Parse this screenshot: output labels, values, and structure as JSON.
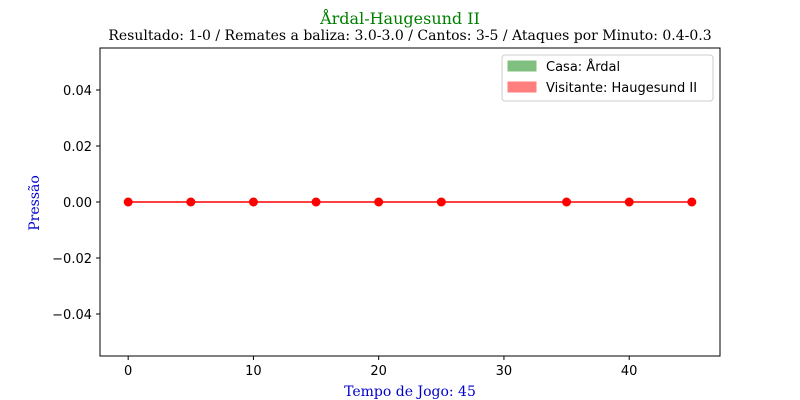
{
  "chart_data": {
    "type": "line",
    "title": "Årdal-Haugesund II",
    "subtitle": "Resultado: 1-0 / Remates a baliza: 3.0-3.0 / Cantos: 3-5 / Ataques por Minuto: 0.4-0.3",
    "xlabel": "Tempo de Jogo: 45",
    "ylabel": "Pressão",
    "xlim": [
      -2.25,
      47.25
    ],
    "ylim": [
      -0.055,
      0.055
    ],
    "xticks": [
      0,
      10,
      20,
      30,
      40
    ],
    "yticks": [
      -0.04,
      -0.02,
      0.0,
      0.02,
      0.04
    ],
    "ytick_labels": [
      "−0.04",
      "−0.02",
      "0.00",
      "0.02",
      "0.04"
    ],
    "grid": false,
    "legend_position": "top-right",
    "legend": [
      {
        "label": "Casa: Årdal",
        "color": "#7fbf7f"
      },
      {
        "label": "Visitante: Haugesund II",
        "color": "#ff7f7f"
      }
    ],
    "series": [
      {
        "color": "#ff0000",
        "x": [
          0,
          5,
          10,
          15,
          20,
          25,
          35,
          40,
          45
        ],
        "y": [
          0,
          0,
          0,
          0,
          0,
          0,
          0,
          0,
          0
        ]
      }
    ],
    "colors": {
      "title": "#008000",
      "axis_label": "#0000cd",
      "line": "#ff0000"
    }
  }
}
